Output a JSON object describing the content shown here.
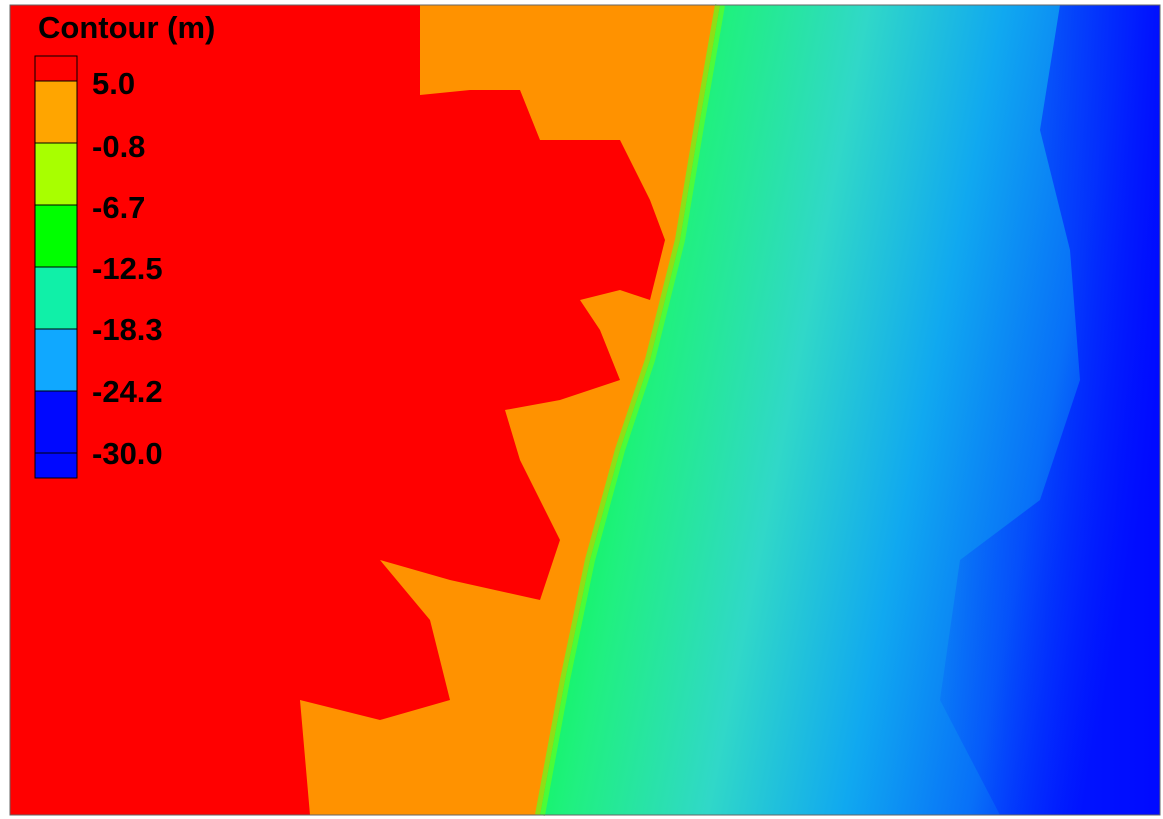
{
  "legend": {
    "title": "Contour (m)",
    "levels": [
      "5.0",
      "-0.8",
      "-6.7",
      "-12.5",
      "-18.3",
      "-24.2",
      "-30.0"
    ]
  }
}
